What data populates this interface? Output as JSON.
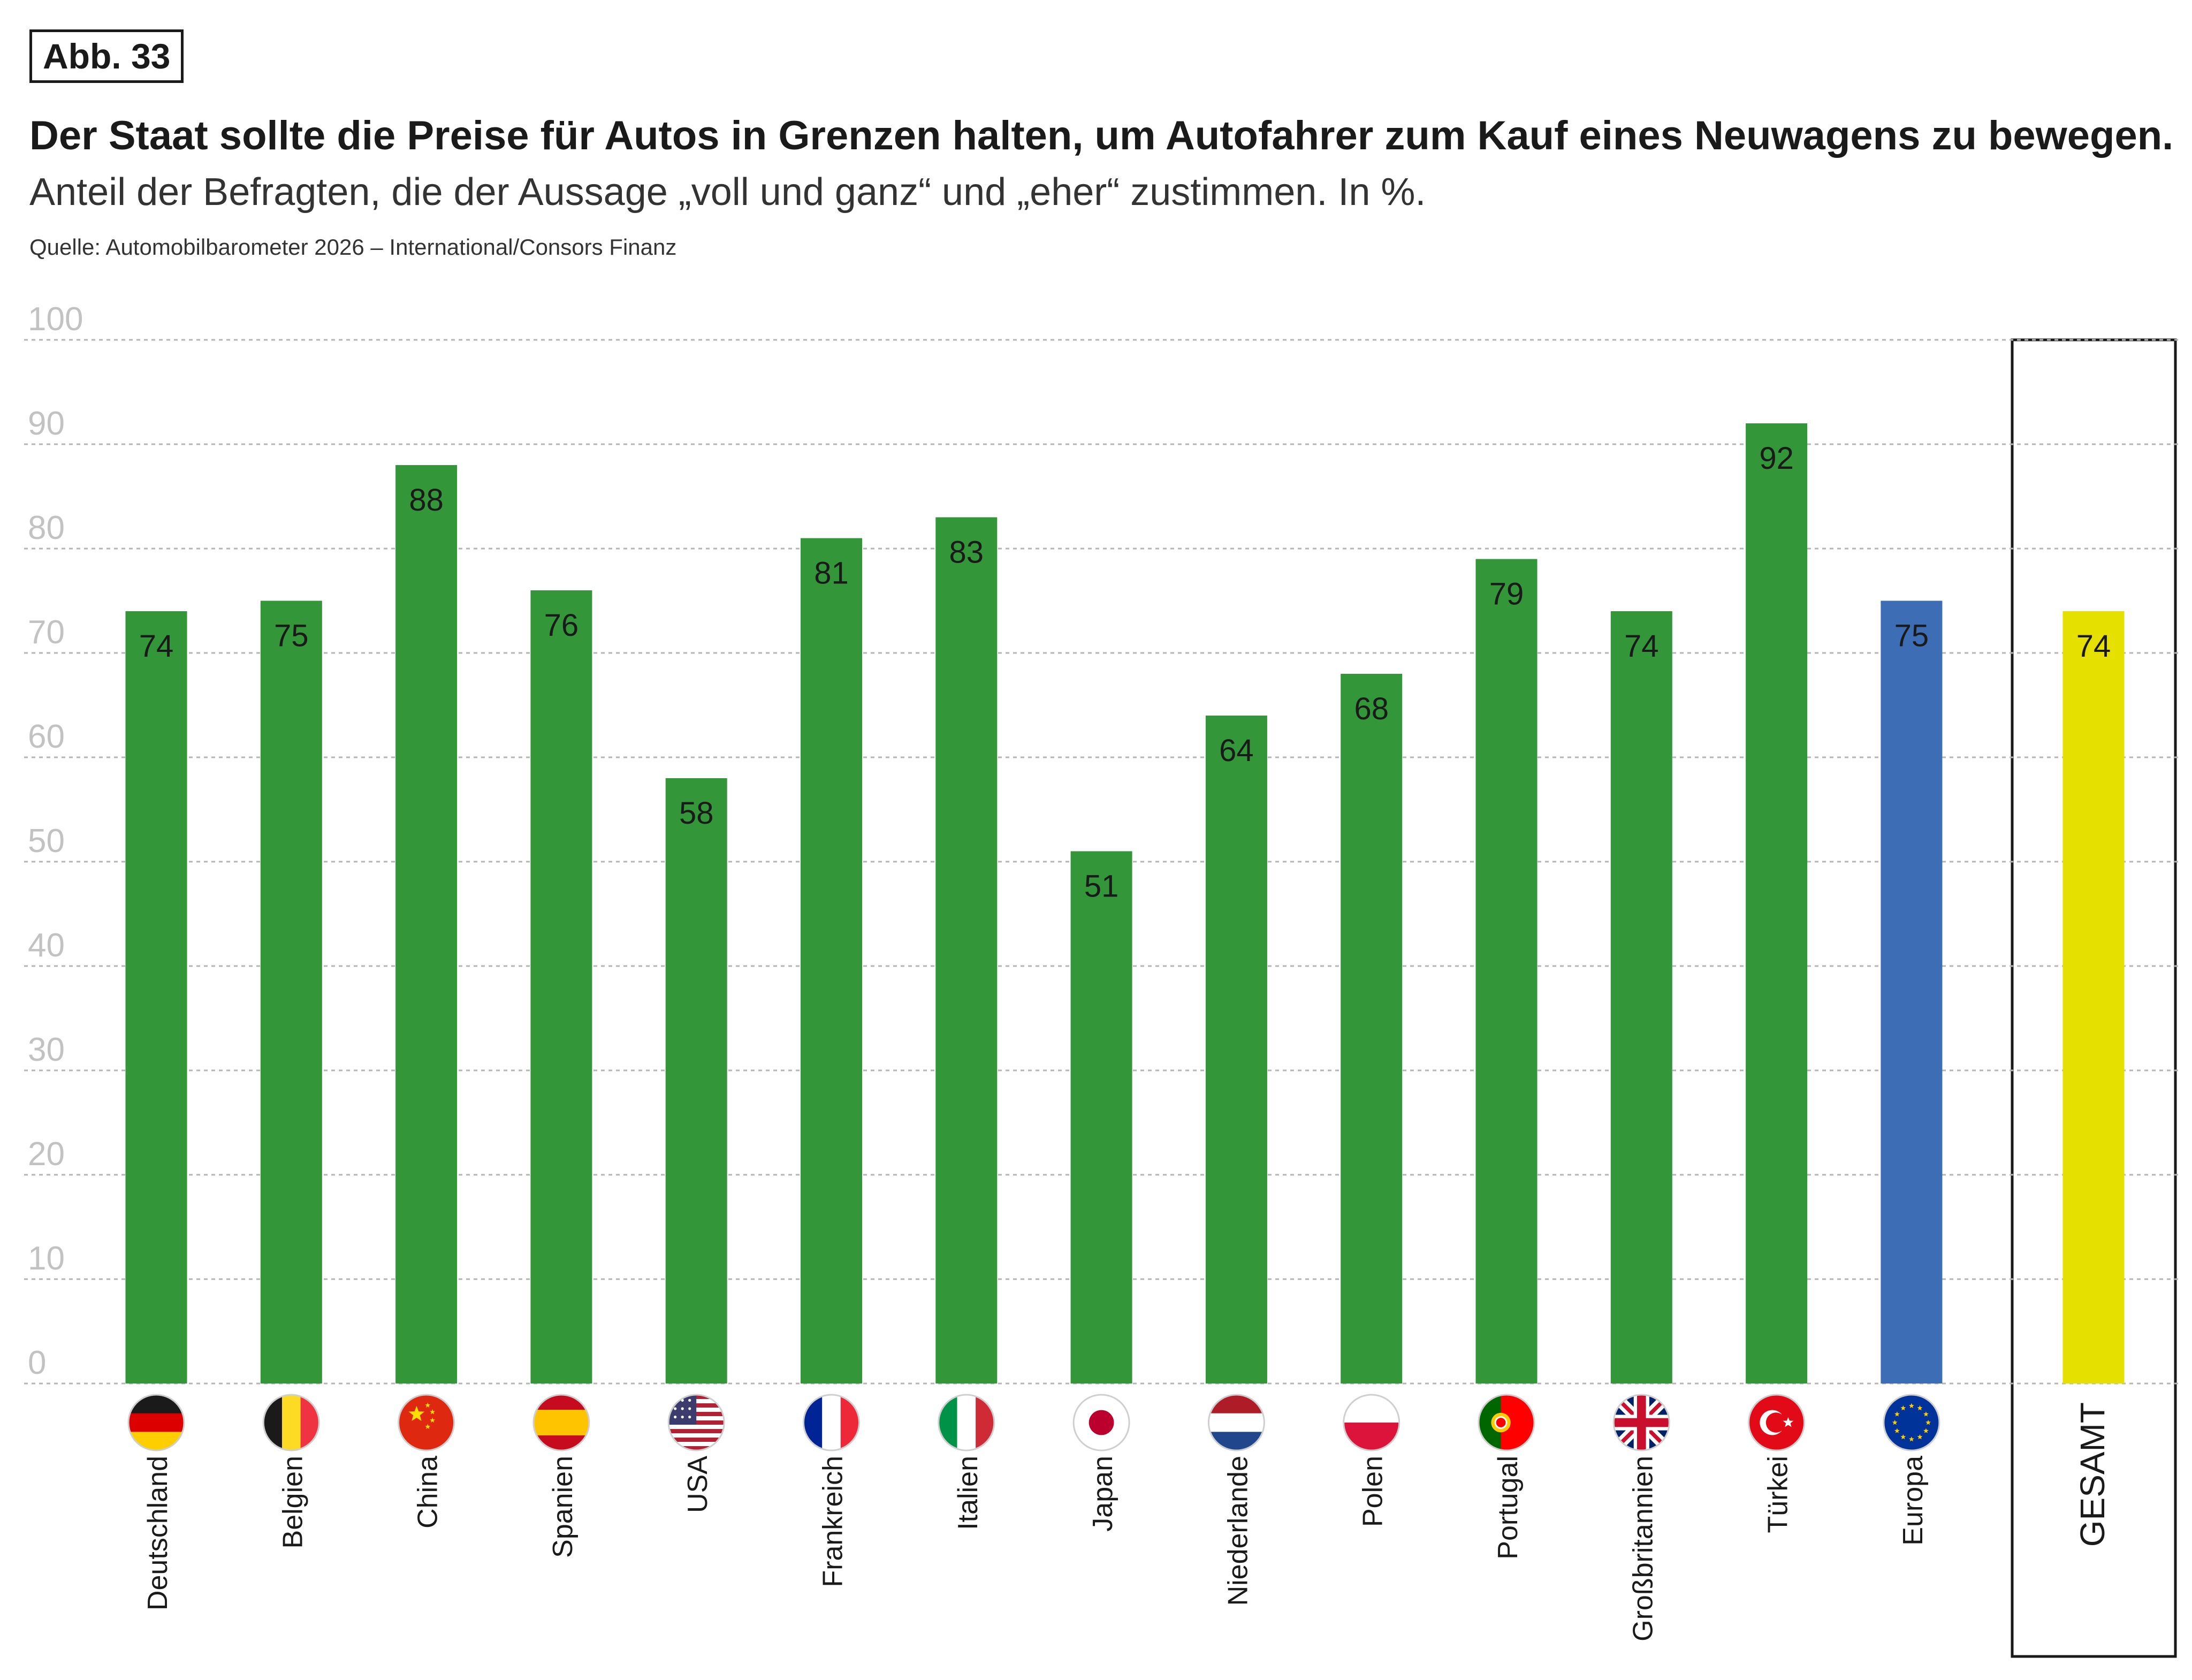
{
  "figure_label": "Abb. 33",
  "title": "Der Staat sollte die Preise für Autos in Grenzen halten, um Autofahrer zum Kauf eines Neuwagens zu bewegen.",
  "subtitle": "Anteil der Befragten, die der Aussage „voll und ganz“ und „eher“ zustimmen. In %.",
  "source": "Quelle: Automobilbarometer 2026 – International/Consors Finanz",
  "colors": {
    "country": "#339639",
    "europe": "#3d6db4",
    "total": "#e6e000",
    "grid": "#b5b5b5",
    "tick": "#c2c2c2"
  },
  "chart_data": {
    "type": "bar",
    "categories": [
      "Deutschland",
      "Belgien",
      "China",
      "Spanien",
      "USA",
      "Frankreich",
      "Italien",
      "Japan",
      "Niederlande",
      "Polen",
      "Portugal",
      "Großbritannien",
      "Türkei",
      "Europa",
      "GESAMT"
    ],
    "values": [
      74,
      75,
      88,
      76,
      58,
      81,
      83,
      51,
      64,
      68,
      79,
      74,
      92,
      75,
      74
    ],
    "flags": [
      "germany-flag",
      "belgium-flag",
      "china-flag",
      "spain-flag",
      "usa-flag",
      "france-flag",
      "italy-flag",
      "japan-flag",
      "netherlands-flag",
      "poland-flag",
      "portugal-flag",
      "uk-flag",
      "turkey-flag",
      "eu-flag",
      ""
    ],
    "bar_colors": [
      "country",
      "country",
      "country",
      "country",
      "country",
      "country",
      "country",
      "country",
      "country",
      "country",
      "country",
      "country",
      "country",
      "europe",
      "total"
    ],
    "yticks": [
      "0",
      "10",
      "20",
      "30",
      "40",
      "50",
      "60",
      "70",
      "80",
      "90",
      "100"
    ],
    "ylim": [
      0,
      100
    ],
    "grid": true,
    "xlabel": "",
    "ylabel": ""
  }
}
